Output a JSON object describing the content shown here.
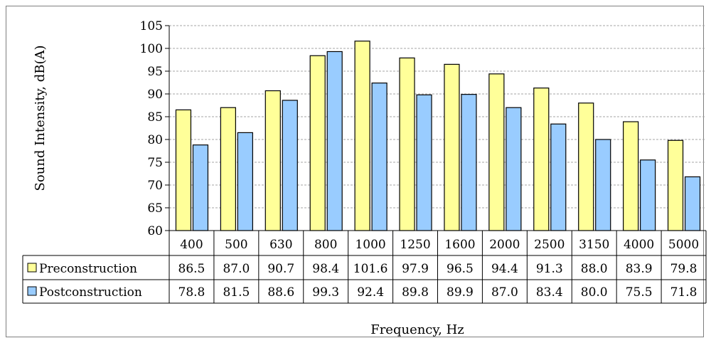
{
  "chart_data": {
    "type": "bar",
    "title": "",
    "xlabel": "Frequency, Hz",
    "ylabel": "Sound Intensity, dB(A)",
    "ylim": [
      60,
      105
    ],
    "yticks": [
      "60",
      "65",
      "70",
      "75",
      "80",
      "85",
      "90",
      "95",
      "100",
      "105"
    ],
    "grid": true,
    "legend": "data-table",
    "categories": [
      "400",
      "500",
      "630",
      "800",
      "1000",
      "1250",
      "1600",
      "2000",
      "2500",
      "3150",
      "4000",
      "5000"
    ],
    "series": [
      {
        "name": "Preconstruction",
        "color": "#ffff99",
        "values": [
          86.5,
          87.0,
          90.7,
          98.4,
          101.6,
          97.9,
          96.5,
          94.4,
          91.3,
          88.0,
          83.9,
          79.8
        ],
        "labels": [
          "86.5",
          "87.0",
          "90.7",
          "98.4",
          "101.6",
          "97.9",
          "96.5",
          "94.4",
          "91.3",
          "88.0",
          "83.9",
          "79.8"
        ]
      },
      {
        "name": "Postconstruction",
        "color": "#99ccff",
        "values": [
          78.8,
          81.5,
          88.6,
          99.3,
          92.4,
          89.8,
          89.9,
          87.0,
          83.4,
          80.0,
          75.5,
          71.8
        ],
        "labels": [
          "78.8",
          "81.5",
          "88.6",
          "99.3",
          "92.4",
          "89.8",
          "89.9",
          "87.0",
          "83.4",
          "80.0",
          "75.5",
          "71.8"
        ]
      }
    ]
  }
}
